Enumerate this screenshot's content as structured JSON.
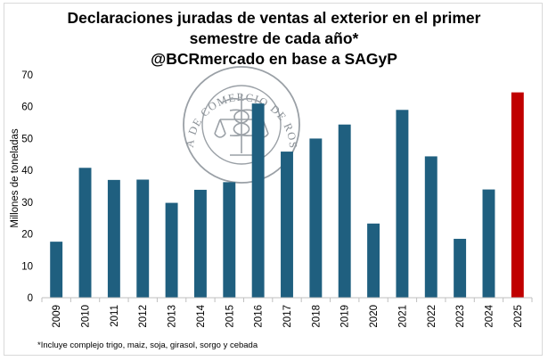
{
  "chart_data": {
    "type": "bar",
    "title": [
      "Declaraciones juradas de ventas al exterior en el primer",
      "semestre de cada año*",
      "@BCRmercado en base a SAGyP"
    ],
    "ylabel": "Millones de toneladas",
    "xlabel": "",
    "ylim": [
      0,
      70
    ],
    "yticks": [
      0,
      10,
      20,
      30,
      40,
      50,
      60,
      70
    ],
    "categories": [
      "2009",
      "2010",
      "2011",
      "2012",
      "2013",
      "2014",
      "2015",
      "2016",
      "2017",
      "2018",
      "2019",
      "2020",
      "2021",
      "2022",
      "2023",
      "2024",
      "2025"
    ],
    "values": [
      17.6,
      40.8,
      37.0,
      37.1,
      29.8,
      33.9,
      36.3,
      61.0,
      45.9,
      50.0,
      54.4,
      23.3,
      59.0,
      44.4,
      18.5,
      34.0,
      64.5
    ],
    "colors": {
      "default": "#1f5f7f",
      "highlight": "#c00000"
    },
    "highlight_category": "2025",
    "grid": false,
    "footnote": "*Incluye complejo trigo, maiz, soja, girasol, sorgo y cebada"
  },
  "watermark": {
    "outer_text": "BOLSA DE COMERCIO DE ROSARIO",
    "color": "#9aa0a6"
  }
}
